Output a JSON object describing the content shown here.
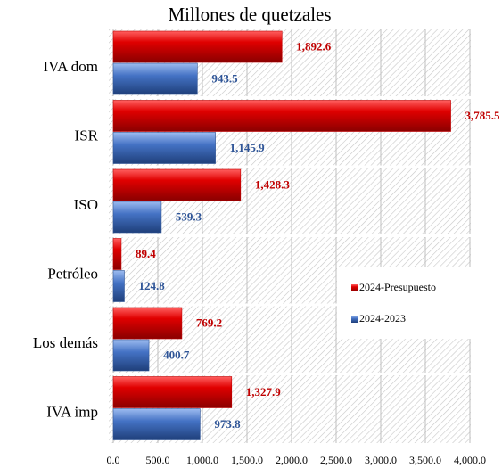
{
  "chart_data": {
    "type": "barh",
    "title": "Millones de quetzales",
    "categories": [
      "IVA dom",
      "ISR",
      "ISO",
      "Petróleo",
      "Los demás",
      "IVA imp"
    ],
    "series": [
      {
        "name": "2024-Presupuesto",
        "color": "#c00000",
        "values": [
          1892.6,
          3785.5,
          1428.3,
          89.4,
          769.2,
          1327.9
        ],
        "value_labels": [
          "1,892.6",
          "3,785.5",
          "1,428.3",
          "89.4",
          "769.2",
          "1,327.9"
        ]
      },
      {
        "name": "2024-2023",
        "color": "#2f5597",
        "values": [
          943.5,
          1145.9,
          539.3,
          124.8,
          400.7,
          973.8
        ],
        "value_labels": [
          "943.5",
          "1,145.9",
          "539.3",
          "124.8",
          "400.7",
          "973.8"
        ]
      }
    ],
    "xlim": [
      0,
      4000
    ],
    "xticks": [
      {
        "value": 0,
        "label": "0.0"
      },
      {
        "value": 500,
        "label": "500.0"
      },
      {
        "value": 1000,
        "label": "1,000.0"
      },
      {
        "value": 1500,
        "label": "1,500.0"
      },
      {
        "value": 2000,
        "label": "2,000.0"
      },
      {
        "value": 2500,
        "label": "2,500.0"
      },
      {
        "value": 3000,
        "label": "3,000.0"
      },
      {
        "value": 3500,
        "label": "3,500.0"
      },
      {
        "value": 4000,
        "label": "4,000.0"
      }
    ],
    "grid": true,
    "legend": "right"
  }
}
